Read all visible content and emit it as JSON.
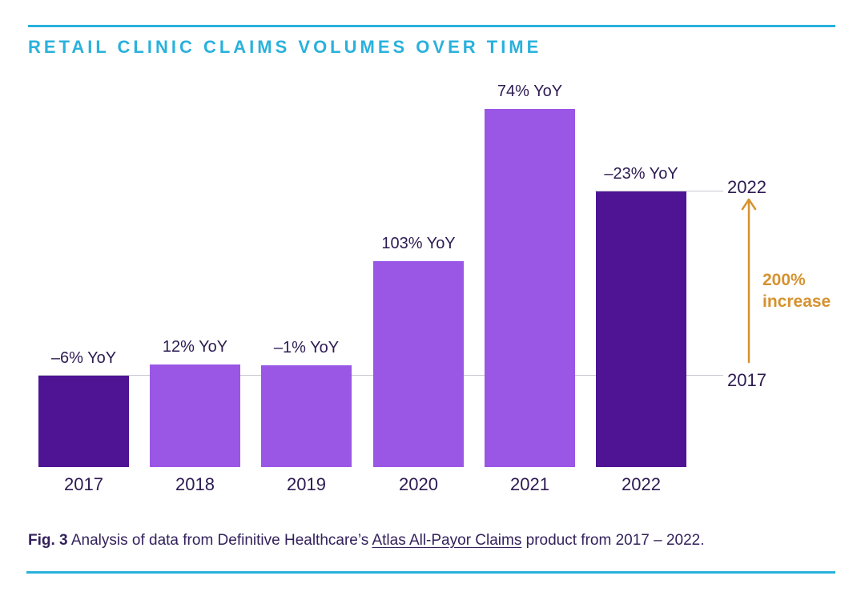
{
  "title": "RETAIL CLINIC CLAIMS VOLUMES OVER TIME",
  "colors": {
    "accent_cyan": "#29b1dc",
    "bar_dark": "#4e1493",
    "bar_light": "#9a56e5",
    "text_navy": "#2d1b52",
    "annotation_orange": "#d6922f",
    "refline_gray": "#c9c9d3"
  },
  "chart_data": {
    "type": "bar",
    "title": "RETAIL CLINIC CLAIMS VOLUMES OVER TIME",
    "categories": [
      "2017",
      "2018",
      "2019",
      "2020",
      "2021",
      "2022"
    ],
    "values": [
      100,
      112,
      111,
      225,
      391,
      301
    ],
    "values_note": "retail clinic claims volume index, 2017 = 100; estimated from bar heights",
    "bar_labels": [
      "–6% YoY",
      "12% YoY",
      "–1% YoY",
      "103% YoY",
      "74% YoY",
      "–23% YoY"
    ],
    "bar_color_keys": [
      "dark",
      "light",
      "light",
      "light",
      "light",
      "dark"
    ],
    "xlabel": "",
    "ylabel": "",
    "grid": false,
    "legend": "none",
    "reference_lines": [
      {
        "label": "2017",
        "at_value": 100
      },
      {
        "label": "2022",
        "at_value": 301
      }
    ],
    "annotation": {
      "top_label": "2022",
      "bottom_label": "2017",
      "arrow_label": "200%\nincrease",
      "arrow_direction": "up"
    }
  },
  "caption": {
    "fig_label": "Fig. 3",
    "before_link": " Analysis of data from Definitive Healthcare’s ",
    "link_text": "Atlas All-Payor Claims",
    "after_link": " product from 2017 – 2022."
  }
}
